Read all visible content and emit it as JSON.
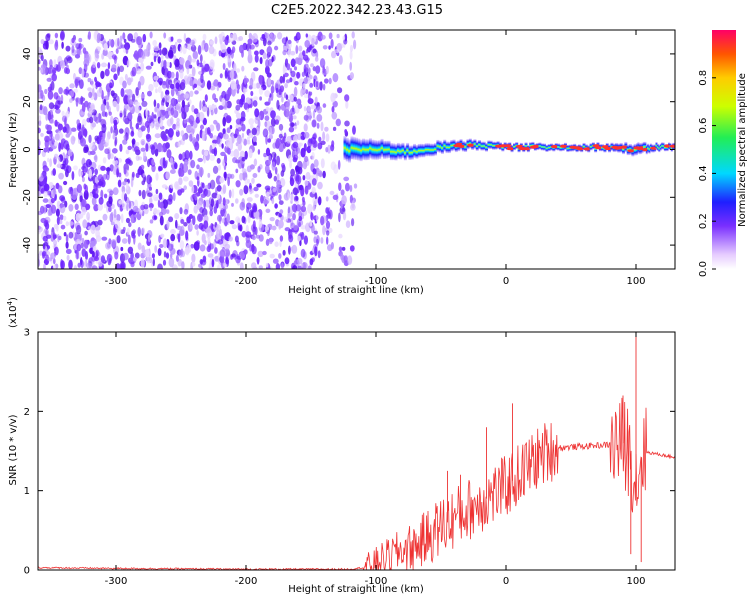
{
  "title": "C2E5.2022.342.23.43.G15",
  "chart_data": [
    {
      "type": "heatmap",
      "xlabel": "Height of straight line (km)",
      "ylabel": "Frequency (Hz)",
      "xlim": [
        -360,
        130
      ],
      "ylim": [
        -50,
        50
      ],
      "xticks": [
        -300,
        -200,
        -100,
        0,
        100
      ],
      "yticks": [
        -40,
        -20,
        0,
        20,
        40
      ],
      "colorbar": {
        "label": "Normalized spectral amplitude",
        "range": [
          0,
          1
        ],
        "ticks": [
          0.0,
          0.2,
          0.4,
          0.6,
          0.8
        ]
      },
      "noise_region": {
        "x_range": [
          -360,
          -115
        ],
        "freq_range": [
          -50,
          48
        ]
      },
      "signal_track": [
        {
          "x": -125,
          "freq": 0,
          "bandwidth": 10,
          "amplitude": 0.35
        },
        {
          "x": -100,
          "freq": 0,
          "bandwidth": 8,
          "amplitude": 0.45
        },
        {
          "x": -75,
          "freq": -1,
          "bandwidth": 6,
          "amplitude": 0.55
        },
        {
          "x": -50,
          "freq": 1,
          "bandwidth": 5,
          "amplitude": 0.65
        },
        {
          "x": -25,
          "freq": 2,
          "bandwidth": 4,
          "amplitude": 0.8
        },
        {
          "x": 0,
          "freq": 1,
          "bandwidth": 3,
          "amplitude": 0.7
        },
        {
          "x": 25,
          "freq": 1,
          "bandwidth": 3,
          "amplitude": 0.75
        },
        {
          "x": 50,
          "freq": 1,
          "bandwidth": 3,
          "amplitude": 0.75
        },
        {
          "x": 75,
          "freq": 1,
          "bandwidth": 3,
          "amplitude": 0.8
        },
        {
          "x": 100,
          "freq": 0,
          "bandwidth": 5,
          "amplitude": 0.85
        },
        {
          "x": 115,
          "freq": 1,
          "bandwidth": 3,
          "amplitude": 0.8
        },
        {
          "x": 130,
          "freq": 1,
          "bandwidth": 3,
          "amplitude": 0.75
        }
      ]
    },
    {
      "type": "line",
      "xlabel": "Height of straight line (km)",
      "ylabel": "SNR (10 * v/v)",
      "ylabel_scale": "(x10",
      "ylabel_exponent": "4",
      "ylabel_close": ")",
      "xlim": [
        -360,
        130
      ],
      "ylim": [
        0,
        3
      ],
      "xticks": [
        -300,
        -200,
        -100,
        0,
        100
      ],
      "yticks": [
        0,
        1,
        2,
        3
      ],
      "series": [
        {
          "color": "#ee3333",
          "x": [
            -360,
            -300,
            -200,
            -120,
            -110,
            -100,
            -90,
            -80,
            -70,
            -60,
            -50,
            -40,
            -30,
            -20,
            -10,
            0,
            10,
            20,
            30,
            40,
            50,
            60,
            70,
            80,
            90,
            95,
            100,
            105,
            110,
            120,
            130
          ],
          "y": [
            0.03,
            0.02,
            0.01,
            0.01,
            0.03,
            0.1,
            0.18,
            0.25,
            0.3,
            0.42,
            0.55,
            0.65,
            0.75,
            0.85,
            0.95,
            1.05,
            1.2,
            1.35,
            1.48,
            1.54,
            1.55,
            1.56,
            1.57,
            1.58,
            1.6,
            1.5,
            1.1,
            1.5,
            1.48,
            1.45,
            1.42
          ]
        }
      ],
      "spikes": [
        {
          "x": -45,
          "y": 1.25
        },
        {
          "x": -35,
          "y": 1.2
        },
        {
          "x": -15,
          "y": 1.8
        },
        {
          "x": 5,
          "y": 2.1
        },
        {
          "x": 90,
          "y": 2.2
        },
        {
          "x": 96,
          "y": 0.2
        },
        {
          "x": 100,
          "y": 3.0
        },
        {
          "x": 104,
          "y": 0.1
        }
      ]
    }
  ]
}
